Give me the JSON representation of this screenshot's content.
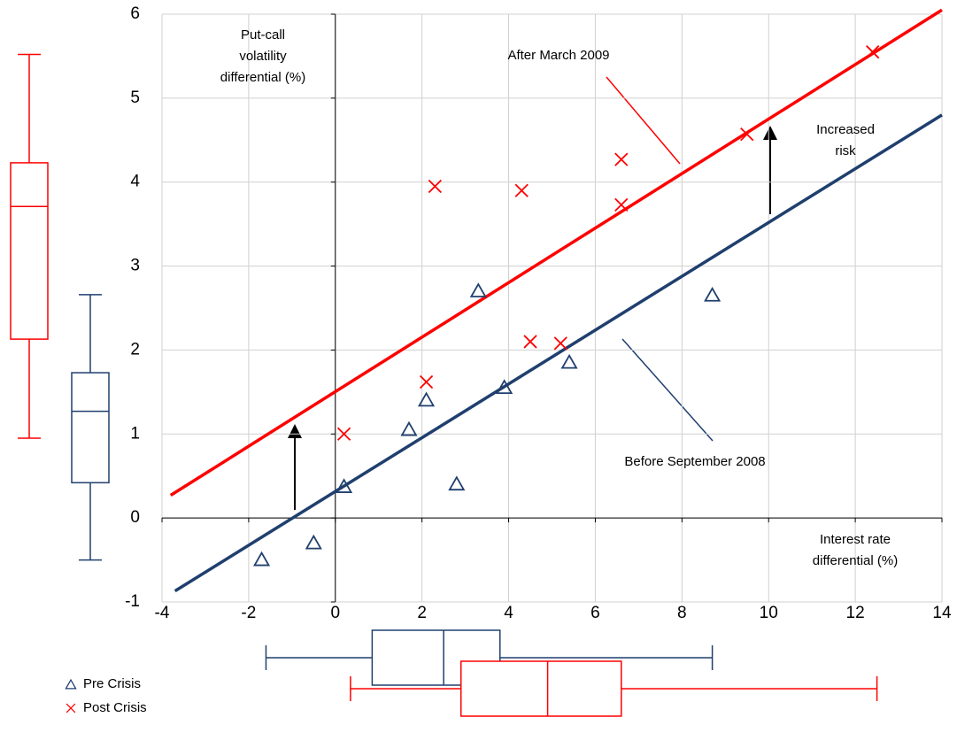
{
  "chart_data": {
    "type": "scatter",
    "xlim": [
      -4,
      14
    ],
    "xticks": [
      -4,
      -2,
      0,
      2,
      4,
      6,
      8,
      10,
      12,
      14
    ],
    "ylim": [
      -1,
      6
    ],
    "yticks": [
      -1,
      0,
      1,
      2,
      3,
      4,
      5,
      6
    ],
    "grid": true,
    "y_label": [
      "Put-call",
      "volatility",
      "differential (%)"
    ],
    "x_label": [
      "Interest rate",
      "differential (%)"
    ],
    "series": [
      {
        "name": "Pre Crisis",
        "color": "#1f3f6e",
        "marker": "triangle",
        "x": [
          -1.7,
          -0.5,
          0.2,
          1.7,
          2.1,
          2.8,
          3.3,
          3.9,
          5.4,
          8.7
        ],
        "values": [
          -0.5,
          -0.3,
          0.37,
          1.05,
          1.4,
          0.4,
          2.7,
          1.55,
          1.85,
          2.65
        ],
        "box_x": {
          "min": -1.6,
          "q1": 0.85,
          "median": 2.5,
          "q3": 3.8,
          "max": 8.7
        },
        "box_y": {
          "min": -0.5,
          "q1": 0.42,
          "median": 1.27,
          "q3": 1.73,
          "max": 2.66
        }
      },
      {
        "name": "Post Crisis",
        "color": "#ff0000",
        "marker": "cross",
        "x": [
          0.2,
          2.1,
          2.3,
          4.3,
          4.5,
          5.2,
          6.6,
          6.6,
          9.5,
          12.4
        ],
        "values": [
          1.0,
          1.62,
          3.95,
          3.9,
          2.1,
          2.08,
          4.27,
          3.73,
          4.57,
          5.55
        ],
        "box_x": {
          "min": 0.35,
          "q1": 2.9,
          "median": 4.9,
          "q3": 6.6,
          "max": 12.5
        },
        "box_y": {
          "min": 0.95,
          "q1": 2.13,
          "median": 3.71,
          "q3": 4.23,
          "max": 5.52
        }
      }
    ],
    "fit_lines": [
      {
        "label": "Before September 2008",
        "color": "#1f3f6e",
        "x": [
          -3.7,
          14
        ],
        "values": [
          -0.87,
          4.8
        ]
      },
      {
        "label": "After March 2009",
        "color": "#ff0000",
        "x": [
          -3.8,
          14
        ],
        "values": [
          0.27,
          6.05
        ]
      }
    ],
    "annotation": [
      "Increased",
      "risk"
    ]
  }
}
